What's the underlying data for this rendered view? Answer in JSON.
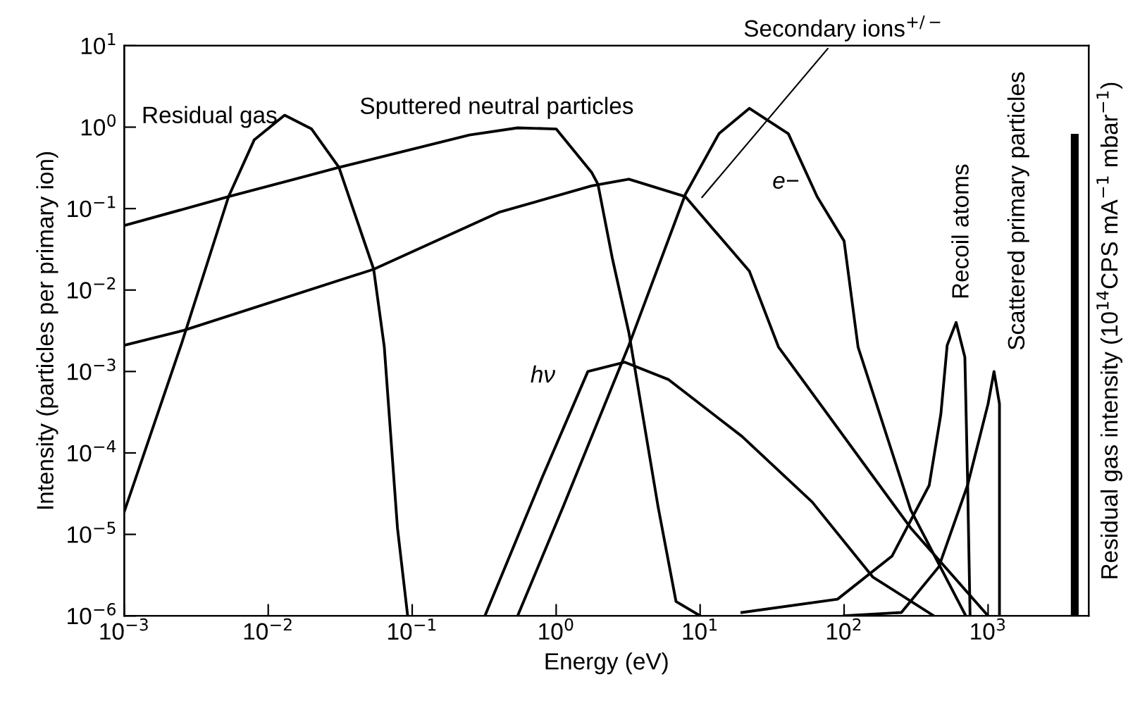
{
  "chart_data": {
    "type": "line",
    "xlabel": "Energy (eV)",
    "ylabel": "Intensity (particles per primary ion)",
    "y2label": "Residual gas intensity (10$^{14}$CPS mA$^{−1}$ mbar$^{−1}$)",
    "log": "xy",
    "grid": false,
    "marker": "none",
    "line_style": "solid",
    "xlim": [
      0.001,
      5000
    ],
    "ylim": [
      1e-06,
      10
    ],
    "xticks": [
      {
        "value": 0.001,
        "label": "10$^{−3}$"
      },
      {
        "value": 0.01,
        "label": "10$^{−2}$"
      },
      {
        "value": 0.1,
        "label": "10$^{−1}$"
      },
      {
        "value": 1,
        "label": "10$^{0}$"
      },
      {
        "value": 10,
        "label": "10$^{1}$"
      },
      {
        "value": 100,
        "label": "10$^{2}$"
      },
      {
        "value": 1000,
        "label": "10$^{3}$"
      }
    ],
    "yticks": [
      {
        "value": 1e-06,
        "label": "10$^{−6}$"
      },
      {
        "value": 1e-05,
        "label": "10$^{−5}$"
      },
      {
        "value": 0.0001,
        "label": "10$^{−4}$"
      },
      {
        "value": 0.001,
        "label": "10$^{−3}$"
      },
      {
        "value": 0.01,
        "label": "10$^{−2}$"
      },
      {
        "value": 0.1,
        "label": "10$^{−1}$"
      },
      {
        "value": 1,
        "label": "10$^{0}$"
      },
      {
        "value": 10,
        "label": "10$^{1}$"
      }
    ],
    "series": [
      {
        "color": "#000000",
        "x": [
          0.001,
          0.0025,
          0.0053,
          0.008,
          0.013,
          0.02,
          0.031,
          0.054,
          0.064,
          0.079,
          0.093
        ],
        "values": [
          1.9e-05,
          0.0022,
          0.14,
          0.7,
          1.4,
          0.95,
          0.32,
          0.018,
          0.002,
          1.2e-05,
          1e-06
        ]
      },
      {
        "color": "#000000",
        "x": [
          0.001,
          0.0053,
          0.031,
          0.25,
          0.54,
          1.0,
          1.76,
          1.95,
          2.45,
          3.2,
          5.1,
          6.8,
          10
        ],
        "values": [
          0.062,
          0.14,
          0.32,
          0.8,
          0.98,
          0.95,
          0.28,
          0.2,
          0.025,
          0.003,
          2.2e-05,
          1.5e-06,
          1e-06
        ]
      },
      {
        "color": "#000000",
        "x": [
          0.001,
          0.0026,
          0.054,
          0.4,
          1.76,
          3.2,
          7.9,
          22,
          35,
          290,
          1000
        ],
        "values": [
          0.0021,
          0.0032,
          0.018,
          0.09,
          0.19,
          0.23,
          0.14,
          0.017,
          0.002,
          1.2e-05,
          1e-06
        ]
      },
      {
        "color": "#000000",
        "x": [
          0.54,
          1.12,
          3.2,
          7.9,
          13.5,
          22,
          41,
          65,
          100,
          125,
          290,
          700
        ],
        "values": [
          1e-06,
          2.2e-05,
          0.0021,
          0.15,
          0.83,
          1.7,
          0.83,
          0.14,
          0.04,
          0.002,
          2e-05,
          1e-06
        ]
      },
      {
        "color": "#000000",
        "x": [
          0.32,
          0.8,
          1.66,
          3,
          6,
          19.5,
          60,
          158,
          420
        ],
        "values": [
          1e-06,
          5e-05,
          0.001,
          0.0013,
          0.0008,
          0.00016,
          2.5e-05,
          3e-06,
          1e-06
        ]
      },
      {
        "color": "#000000",
        "x": [
          19.5,
          90,
          215,
          390,
          470,
          520,
          600,
          690,
          720,
          750
        ],
        "values": [
          1.1e-06,
          1.6e-06,
          5.4e-06,
          4e-05,
          0.0003,
          0.0021,
          0.004,
          0.0015,
          5e-05,
          1e-06
        ]
      },
      {
        "color": "#000000",
        "x": [
          100,
          250,
          455,
          720,
          1000,
          1100,
          1200,
          1200
        ],
        "values": [
          1e-06,
          1.1e-06,
          4e-06,
          4e-05,
          0.0004,
          0.001,
          0.0004,
          1e-06
        ]
      },
      {
        "color": "#000000",
        "x": [
          4000,
          4000
        ],
        "values": [
          1e-06,
          0.74
        ]
      }
    ],
    "annotations": [
      "Residual gas",
      "Sputtered neutral particles",
      "Secondary ions$^{+/−}$",
      "e−",
      "hν",
      "Recoil atoms",
      "Scattered primary particles"
    ]
  }
}
